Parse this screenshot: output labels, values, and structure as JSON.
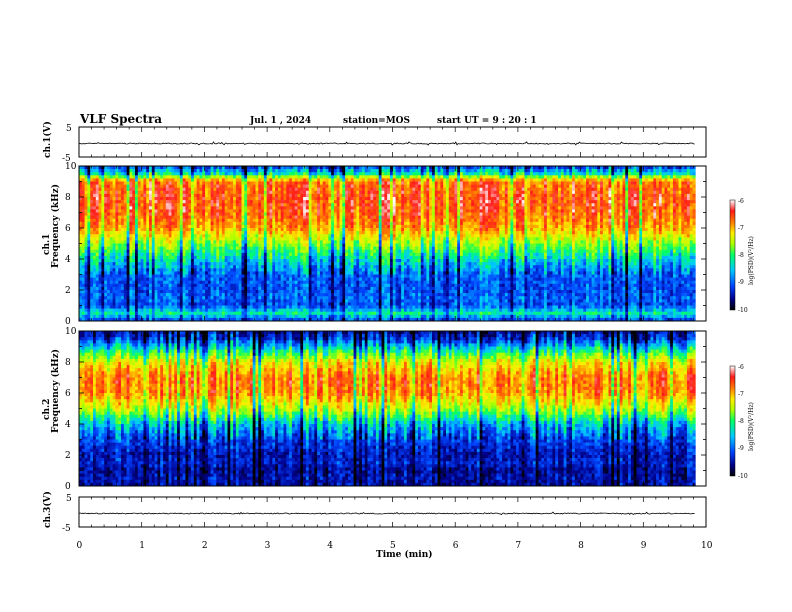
{
  "header": {
    "title": "VLF Spectra",
    "date": "Jul. 1 , 2024",
    "station": "station=MOS",
    "start": "start UT =  9 : 20 : 1"
  },
  "axes": {
    "ch1_wave_label": "ch.1(V)",
    "ch3_wave_label": "ch.3(V)",
    "ch1_spec_label_a": "ch.1",
    "ch2_spec_label_a": "ch.2",
    "freq_label": "Frequency (kHz)",
    "time_label": "Time (min)",
    "wave_ticks": [
      "5",
      "-5"
    ],
    "freq_ticks": [
      "0",
      "2",
      "4",
      "6",
      "8",
      "10"
    ],
    "time_ticks": [
      "0",
      "1",
      "2",
      "3",
      "4",
      "5",
      "6",
      "7",
      "8",
      "9",
      "10"
    ],
    "colorbar_label": "log(PSD)(V²/Hz)",
    "colorbar_ticks": [
      "-6",
      "-7",
      "-8",
      "-9",
      "-10"
    ]
  },
  "colors": {
    "colormap": [
      "#000000",
      "#00008b",
      "#0044ff",
      "#00c8ff",
      "#00ff66",
      "#aaff00",
      "#ffee00",
      "#ff7a00",
      "#ff1a1a",
      "#ffffff"
    ]
  },
  "chart_data": [
    {
      "type": "line",
      "panel": "ch1-waveform",
      "ylabel": "ch.1(V)",
      "xlim": [
        0,
        10
      ],
      "ylim": [
        -5,
        5
      ],
      "trace_mean": 0
    },
    {
      "type": "heatmap",
      "panel": "ch1-spectrogram",
      "ylabel": "Frequency (kHz)",
      "xlim": [
        0,
        10
      ],
      "ylim": [
        0,
        10
      ],
      "data_end_minute": 9.83,
      "colorbar": {
        "label": "log(PSD)(V²/Hz)",
        "range": [
          -10,
          -6
        ]
      },
      "intensity_profile": {
        "freq_khz": [
          0,
          0.5,
          1,
          1.5,
          2,
          3,
          4,
          5,
          6,
          7,
          8,
          9,
          9.5,
          10
        ],
        "log_psd": [
          -9.2,
          -8.4,
          -9.1,
          -9.0,
          -9.1,
          -9.0,
          -8.5,
          -7.8,
          -7.0,
          -6.7,
          -6.6,
          -6.8,
          -8.4,
          -9.2
        ]
      }
    },
    {
      "type": "heatmap",
      "panel": "ch2-spectrogram",
      "ylabel": "Frequency (kHz)",
      "xlim": [
        0,
        10
      ],
      "ylim": [
        0,
        10
      ],
      "data_end_minute": 9.83,
      "colorbar": {
        "label": "log(PSD)(V²/Hz)",
        "range": [
          -10,
          -6
        ]
      },
      "intensity_profile": {
        "freq_khz": [
          0,
          0.5,
          1,
          1.5,
          2,
          3,
          4,
          5,
          6,
          7,
          8,
          9,
          9.5,
          10
        ],
        "log_psd": [
          -9.5,
          -9.4,
          -9.5,
          -9.3,
          -9.4,
          -9.1,
          -8.6,
          -7.6,
          -6.9,
          -6.8,
          -7.4,
          -8.6,
          -9.2,
          -9.5
        ]
      }
    },
    {
      "type": "line",
      "panel": "ch3-waveform",
      "ylabel": "ch.3(V)",
      "xlim": [
        0,
        10
      ],
      "ylim": [
        -5,
        5
      ],
      "trace_mean": 0
    }
  ]
}
